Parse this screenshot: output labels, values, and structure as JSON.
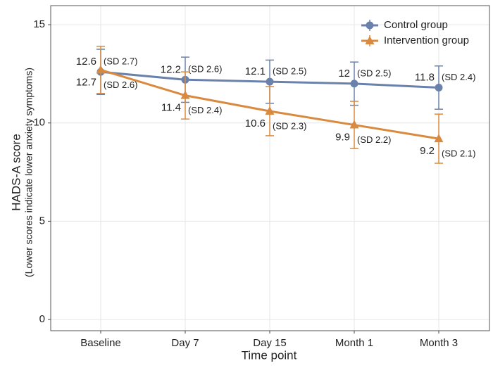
{
  "chart_data": {
    "type": "line",
    "x_label": "Time point",
    "y_label": "HADS-A score",
    "y_sublabel": "(Lower scores indicate lower anxiety symptoms)",
    "categories": [
      "Baseline",
      "Day 7",
      "Day 15",
      "Month 1",
      "Month 3"
    ],
    "series": [
      {
        "name": "Control group",
        "color": "#6a82ab",
        "marker": "circle",
        "values": [
          12.6,
          12.2,
          12.1,
          12.0,
          11.8
        ],
        "errors": [
          1.15,
          1.15,
          1.1,
          1.1,
          1.1
        ],
        "sd_labels": [
          "(SD 2.7)",
          "(SD 2.6)",
          "(SD 2.5)",
          "(SD 2.5)",
          "(SD 2.4)"
        ]
      },
      {
        "name": "Intervention group",
        "color": "#da8a3e",
        "marker": "triangle",
        "values": [
          12.7,
          11.4,
          10.6,
          9.9,
          9.2
        ],
        "errors": [
          1.2,
          1.2,
          1.25,
          1.2,
          1.25
        ],
        "sd_labels": [
          "(SD 2.6)",
          "(SD 2.4)",
          "(SD 2.3)",
          "(SD 2.2)",
          "(SD 2.1)"
        ]
      }
    ],
    "ylim": [
      -0.57,
      15.97
    ],
    "yticks": [
      0,
      5,
      10,
      15
    ],
    "grid": true,
    "legend": "top-right"
  }
}
